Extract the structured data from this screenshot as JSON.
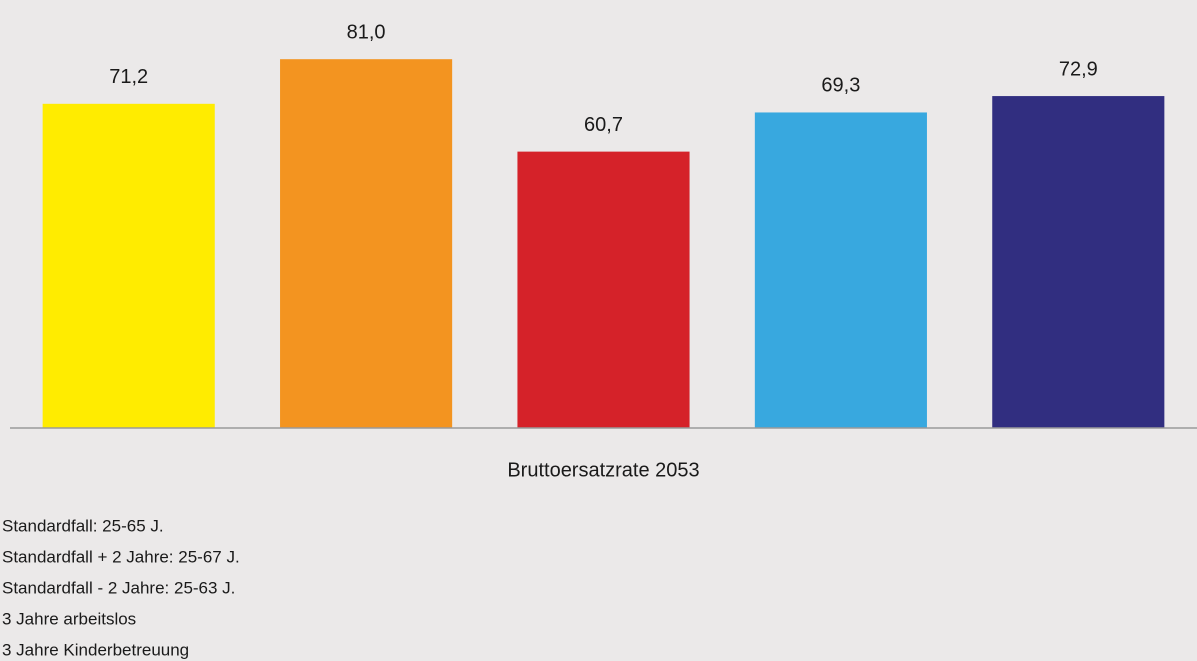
{
  "chart_data": {
    "type": "bar",
    "categories": [
      "Bruttoersatzrate 2053"
    ],
    "series": [
      {
        "name": "Standardfall: 25-65 J.",
        "color": "#ffec00",
        "values": [
          71.2
        ],
        "value_labels": [
          "71,2"
        ]
      },
      {
        "name": "Standardfall + 2 Jahre: 25-67 J.",
        "color": "#f39420",
        "values": [
          81.0
        ],
        "value_labels": [
          "81,0"
        ]
      },
      {
        "name": "Standardfall - 2 Jahre: 25-63 J.",
        "color": "#d52229",
        "values": [
          60.7
        ],
        "value_labels": [
          "60,7"
        ]
      },
      {
        "name": "3 Jahre arbeitslos",
        "color": "#38a8df",
        "values": [
          69.3
        ],
        "value_labels": [
          "69,3"
        ]
      },
      {
        "name": "3 Jahre Kinderbetreuung",
        "color": "#312e80",
        "values": [
          72.9
        ],
        "value_labels": [
          "72,9"
        ]
      }
    ],
    "ylim": [
      0,
      94
    ],
    "legend": "bottom"
  }
}
